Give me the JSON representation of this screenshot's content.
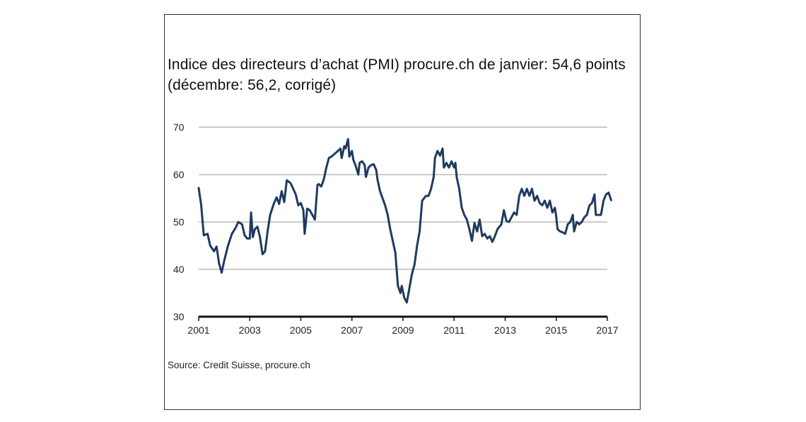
{
  "chart_data": {
    "type": "line",
    "title": "Indice des directeurs d’achat (PMI) procure.ch de janvier: 54,6 points (décembre: 56,2, corrigé)",
    "xlabel": "",
    "ylabel": "",
    "xlim": [
      2001,
      2017
    ],
    "ylim": [
      30,
      70
    ],
    "x_ticks": [
      "2001",
      "2003",
      "2005",
      "2007",
      "2009",
      "2011",
      "2013",
      "2015",
      "2017"
    ],
    "y_ticks": [
      "30",
      "40",
      "50",
      "60",
      "70"
    ],
    "grid": true,
    "legend": "none",
    "series": [
      {
        "color": "#1f3a5f",
        "points": [
          [
            2001.0,
            57.2
          ],
          [
            2001.1,
            53.5
          ],
          [
            2001.2,
            47.2
          ],
          [
            2001.35,
            47.5
          ],
          [
            2001.45,
            45.0
          ],
          [
            2001.6,
            43.8
          ],
          [
            2001.7,
            44.8
          ],
          [
            2001.8,
            41.2
          ],
          [
            2001.9,
            39.3
          ],
          [
            2002.0,
            41.8
          ],
          [
            2002.15,
            45.0
          ],
          [
            2002.3,
            47.5
          ],
          [
            2002.45,
            48.8
          ],
          [
            2002.55,
            50.0
          ],
          [
            2002.7,
            49.5
          ],
          [
            2002.8,
            47.2
          ],
          [
            2002.9,
            46.5
          ],
          [
            2003.0,
            46.5
          ],
          [
            2003.05,
            52.0
          ],
          [
            2003.12,
            46.8
          ],
          [
            2003.2,
            48.5
          ],
          [
            2003.3,
            49.0
          ],
          [
            2003.4,
            46.8
          ],
          [
            2003.5,
            43.2
          ],
          [
            2003.6,
            43.8
          ],
          [
            2003.7,
            48.0
          ],
          [
            2003.8,
            51.5
          ],
          [
            2003.95,
            54.0
          ],
          [
            2004.05,
            55.2
          ],
          [
            2004.15,
            53.8
          ],
          [
            2004.25,
            56.5
          ],
          [
            2004.35,
            54.2
          ],
          [
            2004.45,
            58.8
          ],
          [
            2004.6,
            58.2
          ],
          [
            2004.7,
            57.0
          ],
          [
            2004.8,
            55.8
          ],
          [
            2004.9,
            53.5
          ],
          [
            2005.0,
            54.0
          ],
          [
            2005.1,
            52.5
          ],
          [
            2005.15,
            47.5
          ],
          [
            2005.25,
            52.8
          ],
          [
            2005.35,
            52.5
          ],
          [
            2005.45,
            51.5
          ],
          [
            2005.55,
            50.5
          ],
          [
            2005.65,
            57.8
          ],
          [
            2005.7,
            58.0
          ],
          [
            2005.8,
            57.5
          ],
          [
            2005.9,
            59.0
          ],
          [
            2006.0,
            61.5
          ],
          [
            2006.1,
            63.5
          ],
          [
            2006.2,
            63.8
          ],
          [
            2006.35,
            64.5
          ],
          [
            2006.45,
            65.0
          ],
          [
            2006.55,
            65.5
          ],
          [
            2006.6,
            63.5
          ],
          [
            2006.7,
            66.0
          ],
          [
            2006.75,
            65.5
          ],
          [
            2006.85,
            67.5
          ],
          [
            2006.9,
            63.8
          ],
          [
            2007.0,
            65.0
          ],
          [
            2007.05,
            63.2
          ],
          [
            2007.15,
            61.8
          ],
          [
            2007.25,
            60.0
          ],
          [
            2007.3,
            62.5
          ],
          [
            2007.4,
            62.8
          ],
          [
            2007.5,
            62.0
          ],
          [
            2007.55,
            59.5
          ],
          [
            2007.65,
            61.5
          ],
          [
            2007.75,
            62.0
          ],
          [
            2007.85,
            62.2
          ],
          [
            2007.95,
            61.0
          ],
          [
            2008.0,
            59.0
          ],
          [
            2008.1,
            56.5
          ],
          [
            2008.2,
            55.0
          ],
          [
            2008.3,
            53.5
          ],
          [
            2008.4,
            51.5
          ],
          [
            2008.5,
            48.5
          ],
          [
            2008.6,
            46.0
          ],
          [
            2008.7,
            43.5
          ],
          [
            2008.8,
            36.5
          ],
          [
            2008.9,
            35.0
          ],
          [
            2008.95,
            36.5
          ],
          [
            2009.05,
            34.0
          ],
          [
            2009.15,
            33.0
          ],
          [
            2009.25,
            36.0
          ],
          [
            2009.35,
            39.0
          ],
          [
            2009.45,
            41.0
          ],
          [
            2009.55,
            45.0
          ],
          [
            2009.65,
            48.0
          ],
          [
            2009.75,
            54.5
          ],
          [
            2009.9,
            55.5
          ],
          [
            2010.0,
            55.5
          ],
          [
            2010.1,
            57.0
          ],
          [
            2010.2,
            59.5
          ],
          [
            2010.25,
            63.5
          ],
          [
            2010.35,
            65.0
          ],
          [
            2010.45,
            64.0
          ],
          [
            2010.55,
            65.5
          ],
          [
            2010.6,
            61.5
          ],
          [
            2010.7,
            62.5
          ],
          [
            2010.8,
            61.5
          ],
          [
            2010.9,
            62.8
          ],
          [
            2011.0,
            61.5
          ],
          [
            2011.05,
            62.5
          ],
          [
            2011.1,
            59.5
          ],
          [
            2011.2,
            57.0
          ],
          [
            2011.3,
            53.0
          ],
          [
            2011.4,
            51.5
          ],
          [
            2011.5,
            50.5
          ],
          [
            2011.6,
            48.5
          ],
          [
            2011.7,
            46.0
          ],
          [
            2011.8,
            49.8
          ],
          [
            2011.9,
            48.0
          ],
          [
            2012.0,
            50.5
          ],
          [
            2012.1,
            47.0
          ],
          [
            2012.2,
            47.5
          ],
          [
            2012.3,
            46.5
          ],
          [
            2012.4,
            47.0
          ],
          [
            2012.5,
            45.8
          ],
          [
            2012.6,
            47.0
          ],
          [
            2012.7,
            48.5
          ],
          [
            2012.85,
            49.5
          ],
          [
            2012.95,
            52.5
          ],
          [
            2013.05,
            50.2
          ],
          [
            2013.15,
            50.0
          ],
          [
            2013.25,
            51.0
          ],
          [
            2013.35,
            52.0
          ],
          [
            2013.45,
            51.5
          ],
          [
            2013.55,
            55.5
          ],
          [
            2013.65,
            57.0
          ],
          [
            2013.75,
            55.5
          ],
          [
            2013.85,
            57.0
          ],
          [
            2013.95,
            55.5
          ],
          [
            2014.05,
            57.0
          ],
          [
            2014.15,
            54.5
          ],
          [
            2014.25,
            55.5
          ],
          [
            2014.35,
            54.0
          ],
          [
            2014.45,
            53.5
          ],
          [
            2014.55,
            54.5
          ],
          [
            2014.65,
            53.0
          ],
          [
            2014.75,
            54.5
          ],
          [
            2014.85,
            52.0
          ],
          [
            2014.95,
            53.0
          ],
          [
            2015.0,
            51.0
          ],
          [
            2015.05,
            48.5
          ],
          [
            2015.15,
            48.0
          ],
          [
            2015.25,
            47.8
          ],
          [
            2015.35,
            47.5
          ],
          [
            2015.45,
            49.5
          ],
          [
            2015.55,
            50.0
          ],
          [
            2015.65,
            51.5
          ],
          [
            2015.7,
            48.0
          ],
          [
            2015.8,
            50.0
          ],
          [
            2015.9,
            49.5
          ],
          [
            2016.0,
            50.0
          ],
          [
            2016.1,
            51.0
          ],
          [
            2016.2,
            51.5
          ],
          [
            2016.3,
            53.5
          ],
          [
            2016.4,
            54.0
          ],
          [
            2016.5,
            55.8
          ],
          [
            2016.55,
            51.5
          ],
          [
            2016.65,
            51.5
          ],
          [
            2016.75,
            51.5
          ],
          [
            2016.85,
            54.5
          ],
          [
            2016.95,
            55.8
          ],
          [
            2017.05,
            56.2
          ],
          [
            2017.15,
            54.6
          ]
        ]
      }
    ]
  },
  "source_text": "Source: Credit Suisse, procure.ch"
}
